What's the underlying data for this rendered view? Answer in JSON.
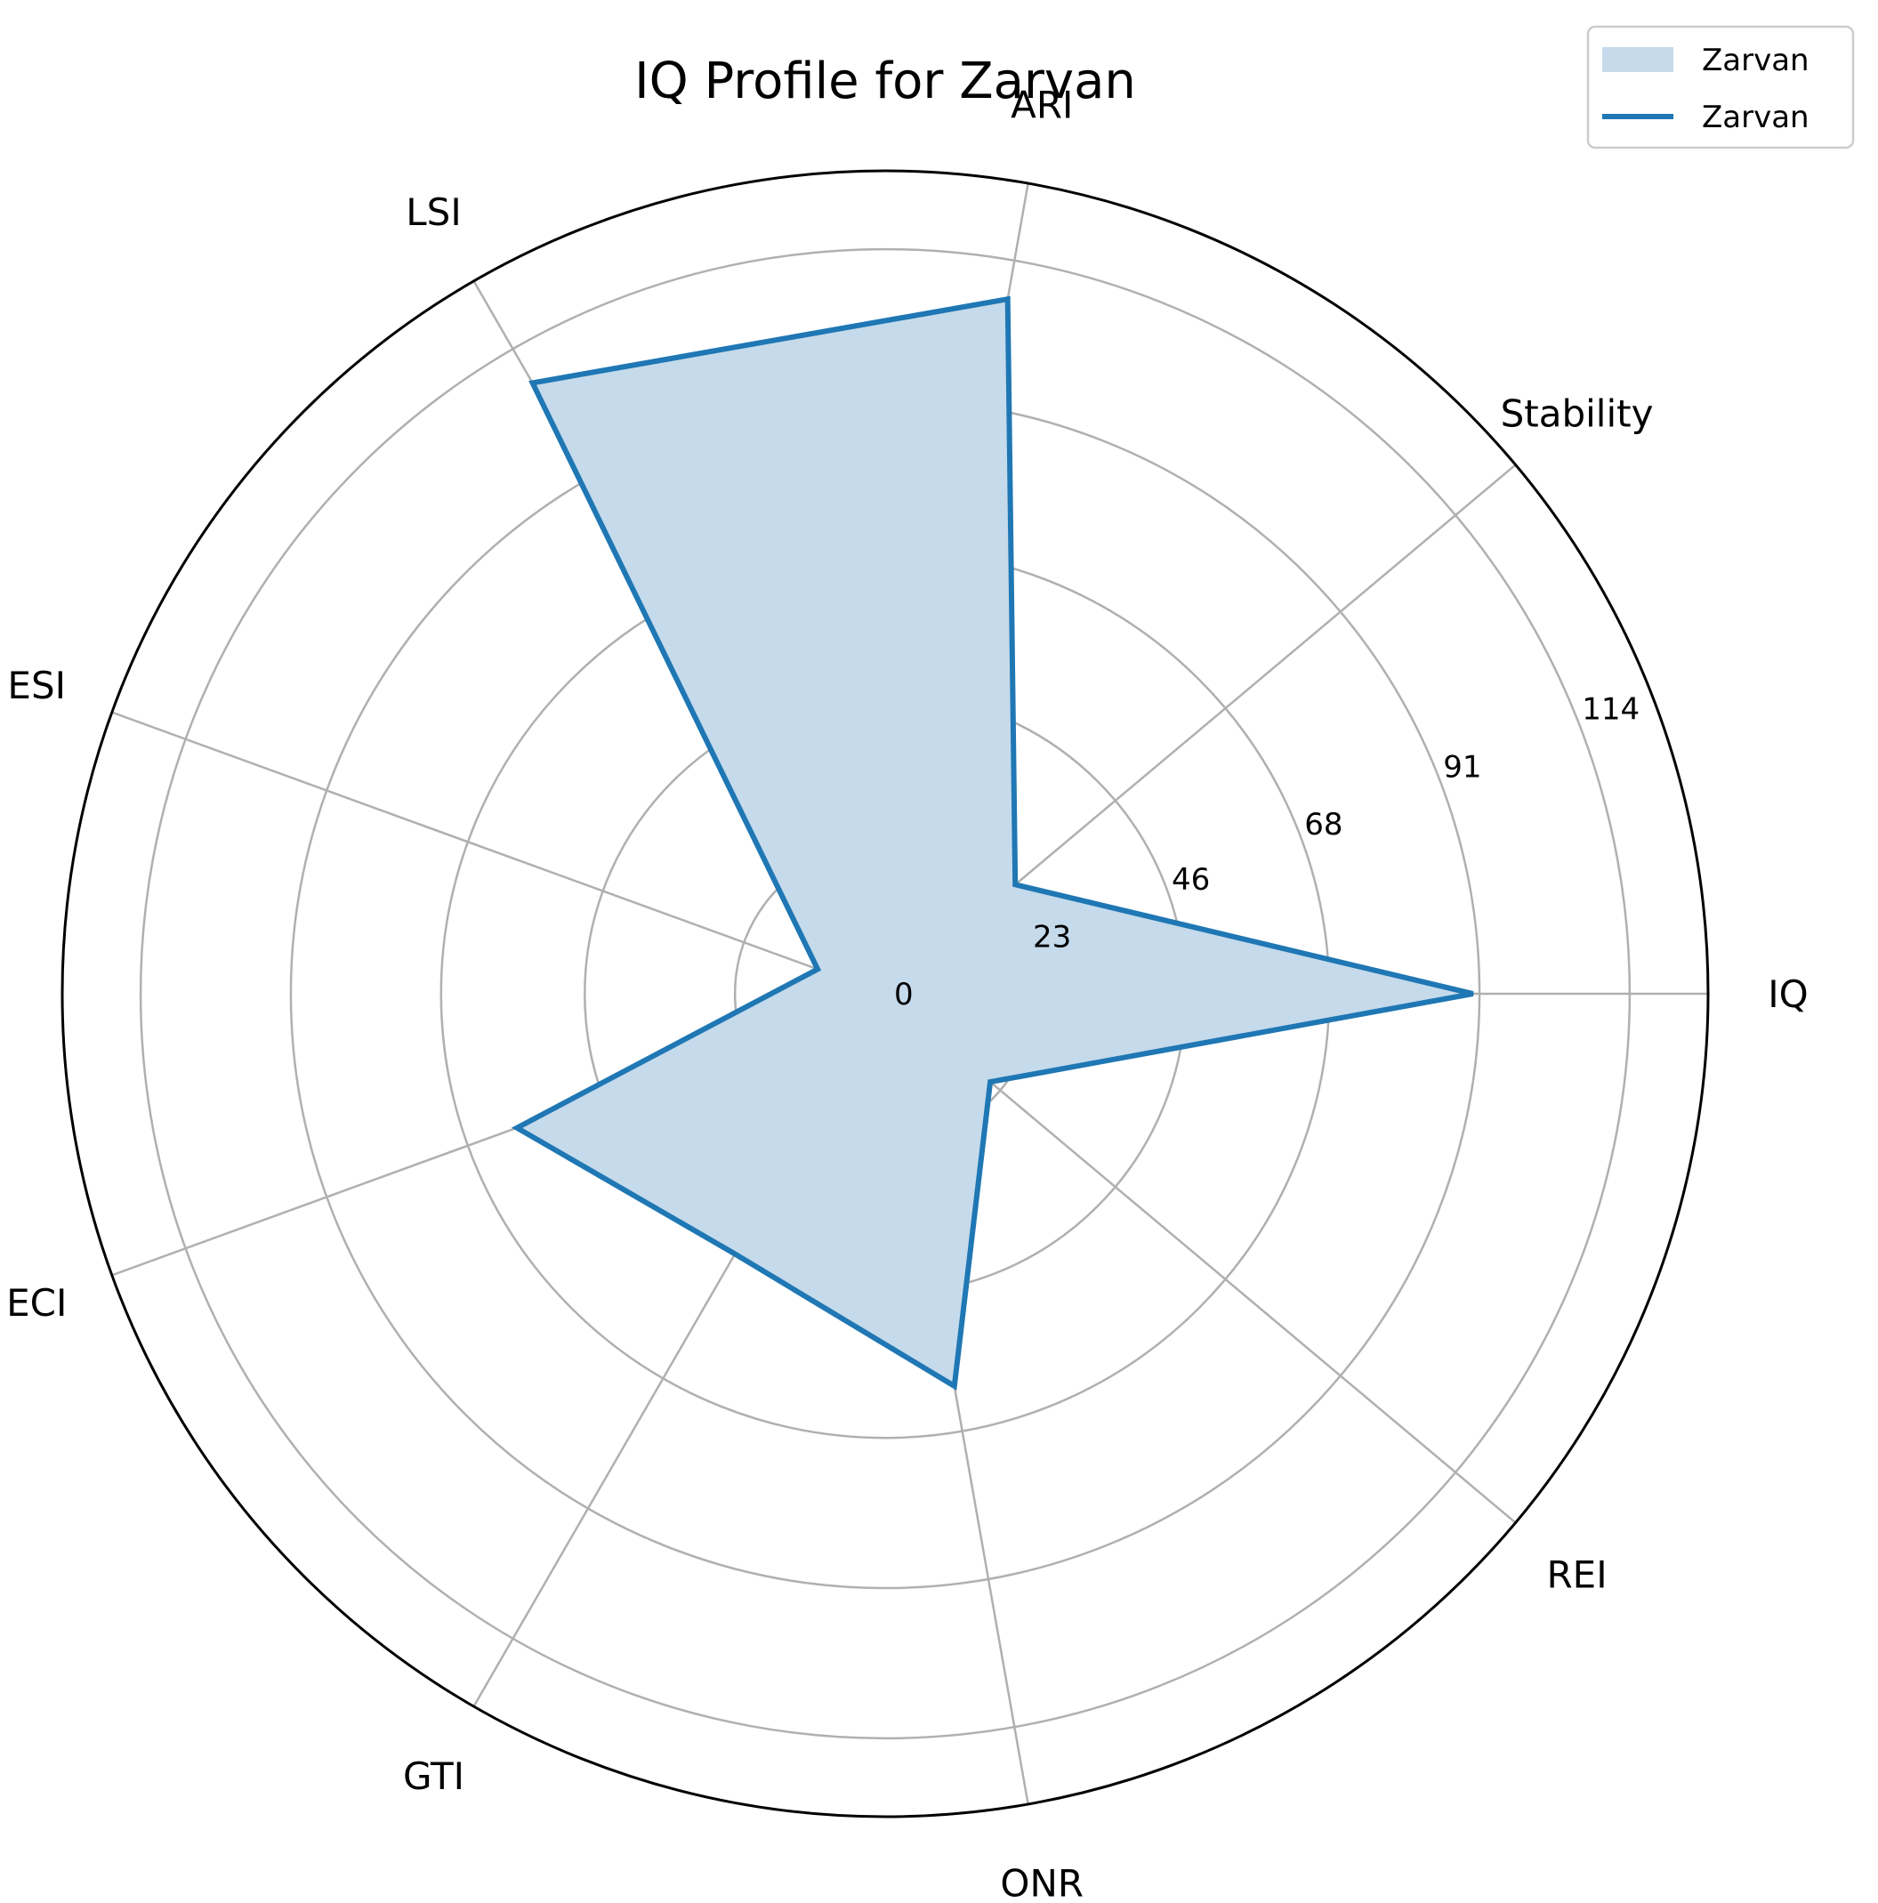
{
  "chart_data": {
    "type": "radar",
    "title": "IQ Profile for Zarvan",
    "categories": [
      "IQ",
      "Stability",
      "ARI",
      "LSI",
      "ESI",
      "ECI",
      "GTI",
      "ONR",
      "REI"
    ],
    "series": [
      {
        "name": "Zarvan",
        "values": [
          90,
          26,
          108,
          108,
          11,
          60,
          46,
          61,
          21
        ]
      }
    ],
    "radial_ticks": [
      "0",
      "23",
      "46",
      "68",
      "91",
      "114"
    ],
    "radial_tick_values": [
      0,
      23,
      46,
      68,
      91,
      114
    ],
    "rlim": [
      0,
      126
    ],
    "legend": {
      "placement": "top-right",
      "entries": [
        {
          "label": "Zarvan",
          "kind": "fill"
        },
        {
          "label": "Zarvan",
          "kind": "line"
        }
      ]
    },
    "colors": {
      "line": "#1f77b4",
      "fill": "#c5daeb",
      "grid": "#b0b0b0",
      "frame": "#000000"
    },
    "grid": true
  }
}
